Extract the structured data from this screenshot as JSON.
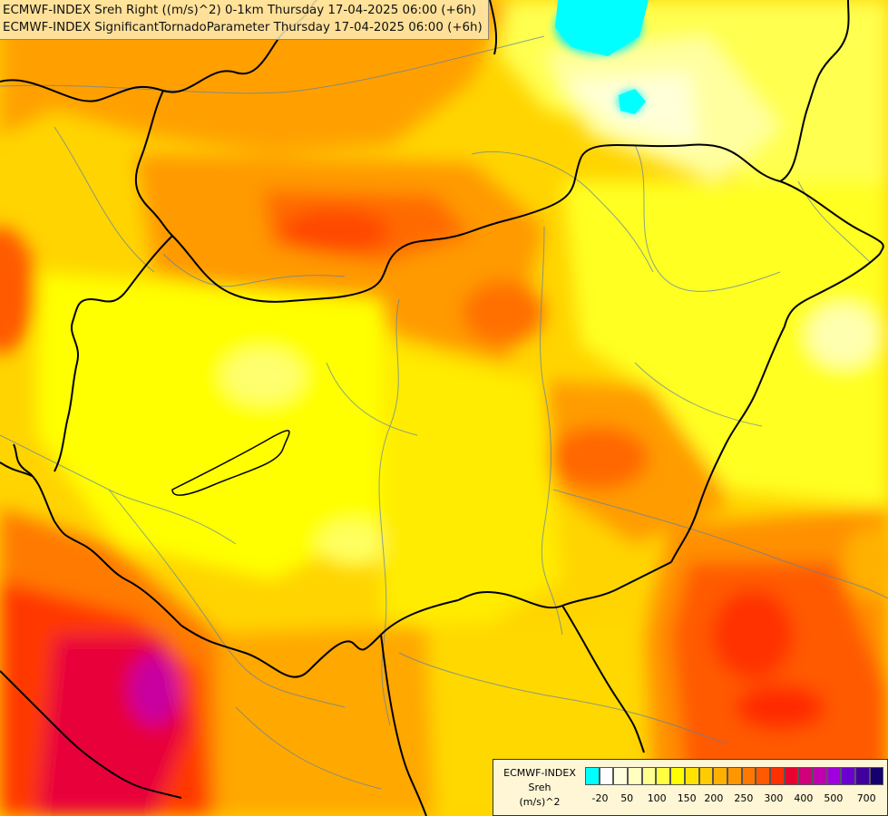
{
  "titles": {
    "line1": "ECMWF-INDEX Sreh Right ((m/s)^2) 0-1km Thursday 17-04-2025 06:00 (+6h)",
    "line2": "ECMWF-INDEX SignificantTornadoParameter Thursday 17-04-2025 06:00 (+6h)"
  },
  "legend": {
    "line1": "ECMWF-INDEX",
    "line2": "Sreh",
    "line3": "(m/s)^2",
    "colors": [
      "#00ffff",
      "#ffffff",
      "#ffffe0",
      "#ffffc0",
      "#ffff90",
      "#ffff40",
      "#ffff00",
      "#ffe400",
      "#ffcc00",
      "#ffb000",
      "#ff9600",
      "#ff7800",
      "#ff5a00",
      "#ff3000",
      "#e80030",
      "#d0007a",
      "#c000b0",
      "#a000e0",
      "#6a00d0",
      "#4000a0",
      "#150070"
    ],
    "ticks": [
      "-20",
      "50",
      "100",
      "150",
      "200",
      "250",
      "300",
      "400",
      "500",
      "700"
    ]
  }
}
